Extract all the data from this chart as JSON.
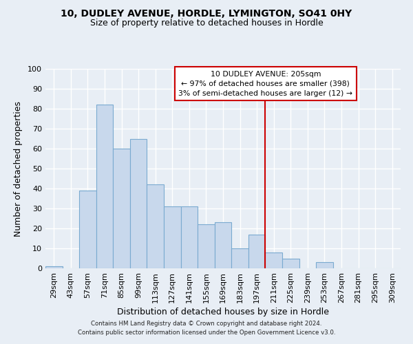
{
  "title1": "10, DUDLEY AVENUE, HORDLE, LYMINGTON, SO41 0HY",
  "title2": "Size of property relative to detached houses in Hordle",
  "xlabel": "Distribution of detached houses by size in Hordle",
  "ylabel": "Number of detached properties",
  "bar_color": "#c8d8ec",
  "bar_edge_color": "#7aaad0",
  "categories": [
    "29sqm",
    "43sqm",
    "57sqm",
    "71sqm",
    "85sqm",
    "99sqm",
    "113sqm",
    "127sqm",
    "141sqm",
    "155sqm",
    "169sqm",
    "183sqm",
    "197sqm",
    "211sqm",
    "225sqm",
    "239sqm",
    "253sqm",
    "267sqm",
    "281sqm",
    "295sqm",
    "309sqm"
  ],
  "values": [
    1,
    0,
    39,
    82,
    60,
    65,
    42,
    31,
    31,
    22,
    23,
    10,
    17,
    8,
    5,
    0,
    3,
    0,
    0,
    0,
    0
  ],
  "ylim": [
    0,
    100
  ],
  "yticks": [
    0,
    10,
    20,
    30,
    40,
    50,
    60,
    70,
    80,
    90,
    100
  ],
  "vline_color": "#cc0000",
  "annotation_title": "10 DUDLEY AVENUE: 205sqm",
  "annotation_line1": "← 97% of detached houses are smaller (398)",
  "annotation_line2": "3% of semi-detached houses are larger (12) →",
  "annotation_box_color": "#cc0000",
  "background_color": "#e8eef5",
  "grid_color": "#ffffff",
  "footer1": "Contains HM Land Registry data © Crown copyright and database right 2024.",
  "footer2": "Contains public sector information licensed under the Open Government Licence v3.0."
}
